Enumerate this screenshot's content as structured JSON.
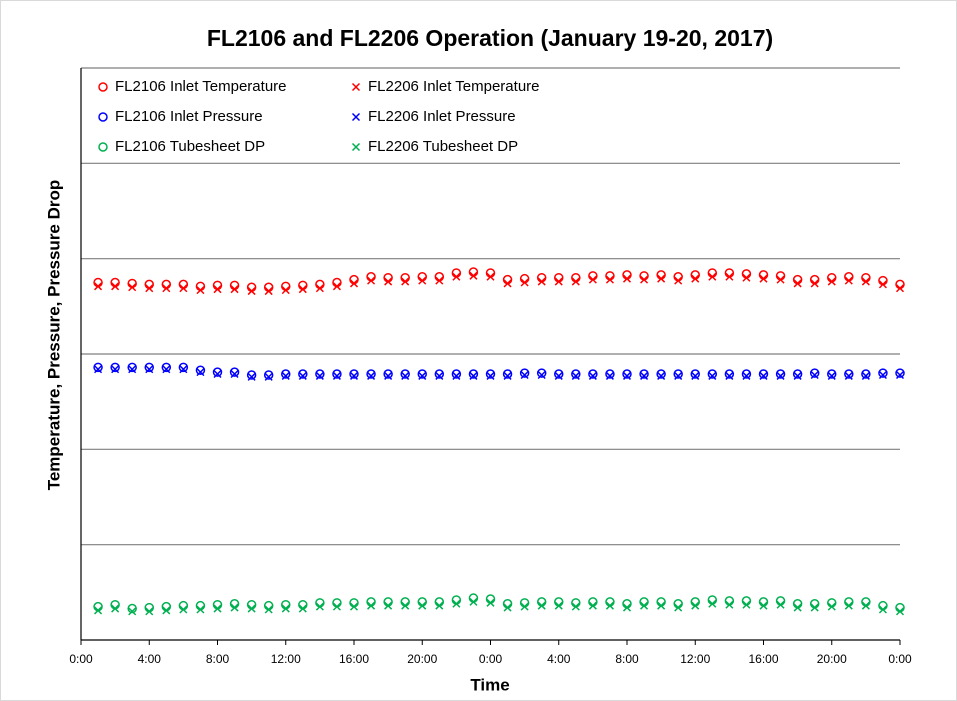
{
  "chart_data": {
    "type": "scatter",
    "title": "FL2106 and FL2206 Operation (January 19-20, 2017)",
    "x_label": "Time",
    "y_label": "Temperature, Pressure, Pressure Drop",
    "xlim": [
      0,
      48
    ],
    "xticks": [
      {
        "value": 0,
        "label": "0:00"
      },
      {
        "value": 4,
        "label": "4:00"
      },
      {
        "value": 8,
        "label": "8:00"
      },
      {
        "value": 12,
        "label": "12:00"
      },
      {
        "value": 16,
        "label": "16:00"
      },
      {
        "value": 20,
        "label": "20:00"
      },
      {
        "value": 24,
        "label": "0:00"
      },
      {
        "value": 28,
        "label": "4:00"
      },
      {
        "value": 32,
        "label": "8:00"
      },
      {
        "value": 36,
        "label": "12:00"
      },
      {
        "value": 40,
        "label": "16:00"
      },
      {
        "value": 44,
        "label": "20:00"
      },
      {
        "value": 48,
        "label": "0:00"
      }
    ],
    "ylim": [
      0,
      6
    ],
    "yticks": [
      0,
      1,
      2,
      3,
      4,
      5,
      6
    ],
    "grid": true,
    "legend": "upper left",
    "x": [
      1,
      2,
      3,
      4,
      5,
      6,
      7,
      8,
      9,
      10,
      11,
      12,
      13,
      14,
      15,
      16,
      17,
      18,
      19,
      20,
      21,
      22,
      23,
      24,
      25,
      26,
      27,
      28,
      29,
      30,
      31,
      32,
      33,
      34,
      35,
      36,
      37,
      38,
      39,
      40,
      41,
      42,
      43,
      44,
      45,
      46,
      47,
      48
    ],
    "series": [
      {
        "name": "FL2106 Inlet Temperature",
        "color": "#ff0000",
        "marker": "o",
        "values": [
          3.75,
          3.75,
          3.74,
          3.73,
          3.73,
          3.73,
          3.71,
          3.72,
          3.72,
          3.7,
          3.7,
          3.71,
          3.72,
          3.73,
          3.75,
          3.78,
          3.81,
          3.8,
          3.8,
          3.81,
          3.81,
          3.85,
          3.86,
          3.85,
          3.78,
          3.79,
          3.8,
          3.8,
          3.8,
          3.82,
          3.82,
          3.83,
          3.82,
          3.83,
          3.81,
          3.83,
          3.85,
          3.85,
          3.84,
          3.83,
          3.82,
          3.78,
          3.78,
          3.8,
          3.81,
          3.8,
          3.77,
          3.73
        ]
      },
      {
        "name": "FL2206 Inlet Temperature",
        "color": "#ff0000",
        "marker": "x",
        "values": [
          3.71,
          3.71,
          3.7,
          3.69,
          3.69,
          3.69,
          3.67,
          3.68,
          3.68,
          3.66,
          3.66,
          3.67,
          3.68,
          3.69,
          3.71,
          3.74,
          3.77,
          3.76,
          3.76,
          3.77,
          3.77,
          3.81,
          3.82,
          3.81,
          3.74,
          3.75,
          3.76,
          3.76,
          3.76,
          3.78,
          3.78,
          3.79,
          3.78,
          3.79,
          3.77,
          3.79,
          3.81,
          3.81,
          3.8,
          3.79,
          3.78,
          3.74,
          3.74,
          3.76,
          3.77,
          3.76,
          3.73,
          3.69
        ]
      },
      {
        "name": "FL2106 Inlet Pressure",
        "color": "#0000ff",
        "marker": "o",
        "values": [
          2.86,
          2.86,
          2.86,
          2.86,
          2.86,
          2.86,
          2.83,
          2.81,
          2.81,
          2.78,
          2.78,
          2.79,
          2.79,
          2.79,
          2.79,
          2.79,
          2.79,
          2.79,
          2.79,
          2.79,
          2.79,
          2.79,
          2.79,
          2.79,
          2.79,
          2.8,
          2.8,
          2.79,
          2.79,
          2.79,
          2.79,
          2.79,
          2.79,
          2.79,
          2.79,
          2.79,
          2.79,
          2.79,
          2.79,
          2.79,
          2.79,
          2.79,
          2.8,
          2.79,
          2.79,
          2.79,
          2.8,
          2.8
        ]
      },
      {
        "name": "FL2206 Inlet Pressure",
        "color": "#0000ff",
        "marker": "x",
        "values": [
          2.84,
          2.84,
          2.84,
          2.84,
          2.84,
          2.84,
          2.81,
          2.79,
          2.79,
          2.76,
          2.76,
          2.77,
          2.77,
          2.77,
          2.77,
          2.77,
          2.77,
          2.77,
          2.77,
          2.77,
          2.77,
          2.77,
          2.77,
          2.77,
          2.77,
          2.78,
          2.78,
          2.77,
          2.77,
          2.77,
          2.77,
          2.77,
          2.77,
          2.77,
          2.77,
          2.77,
          2.77,
          2.77,
          2.77,
          2.77,
          2.77,
          2.77,
          2.78,
          2.77,
          2.77,
          2.77,
          2.78,
          2.78
        ]
      },
      {
        "name": "FL2106 Tubesheet DP",
        "color": "#00b050",
        "marker": "o",
        "values": [
          0.35,
          0.37,
          0.33,
          0.34,
          0.35,
          0.36,
          0.36,
          0.37,
          0.38,
          0.37,
          0.36,
          0.37,
          0.37,
          0.39,
          0.39,
          0.39,
          0.4,
          0.4,
          0.4,
          0.4,
          0.4,
          0.42,
          0.44,
          0.43,
          0.38,
          0.39,
          0.4,
          0.4,
          0.39,
          0.4,
          0.4,
          0.38,
          0.4,
          0.4,
          0.38,
          0.4,
          0.42,
          0.41,
          0.41,
          0.4,
          0.41,
          0.38,
          0.38,
          0.39,
          0.4,
          0.4,
          0.36,
          0.34
        ]
      },
      {
        "name": "FL2206 Tubesheet DP",
        "color": "#00b050",
        "marker": "x",
        "values": [
          0.31,
          0.33,
          0.3,
          0.3,
          0.31,
          0.32,
          0.32,
          0.33,
          0.34,
          0.33,
          0.32,
          0.33,
          0.33,
          0.35,
          0.35,
          0.35,
          0.36,
          0.36,
          0.36,
          0.36,
          0.36,
          0.38,
          0.4,
          0.39,
          0.34,
          0.35,
          0.36,
          0.36,
          0.35,
          0.36,
          0.36,
          0.34,
          0.36,
          0.36,
          0.34,
          0.36,
          0.38,
          0.37,
          0.37,
          0.36,
          0.37,
          0.34,
          0.34,
          0.35,
          0.36,
          0.36,
          0.32,
          0.3
        ]
      }
    ]
  }
}
